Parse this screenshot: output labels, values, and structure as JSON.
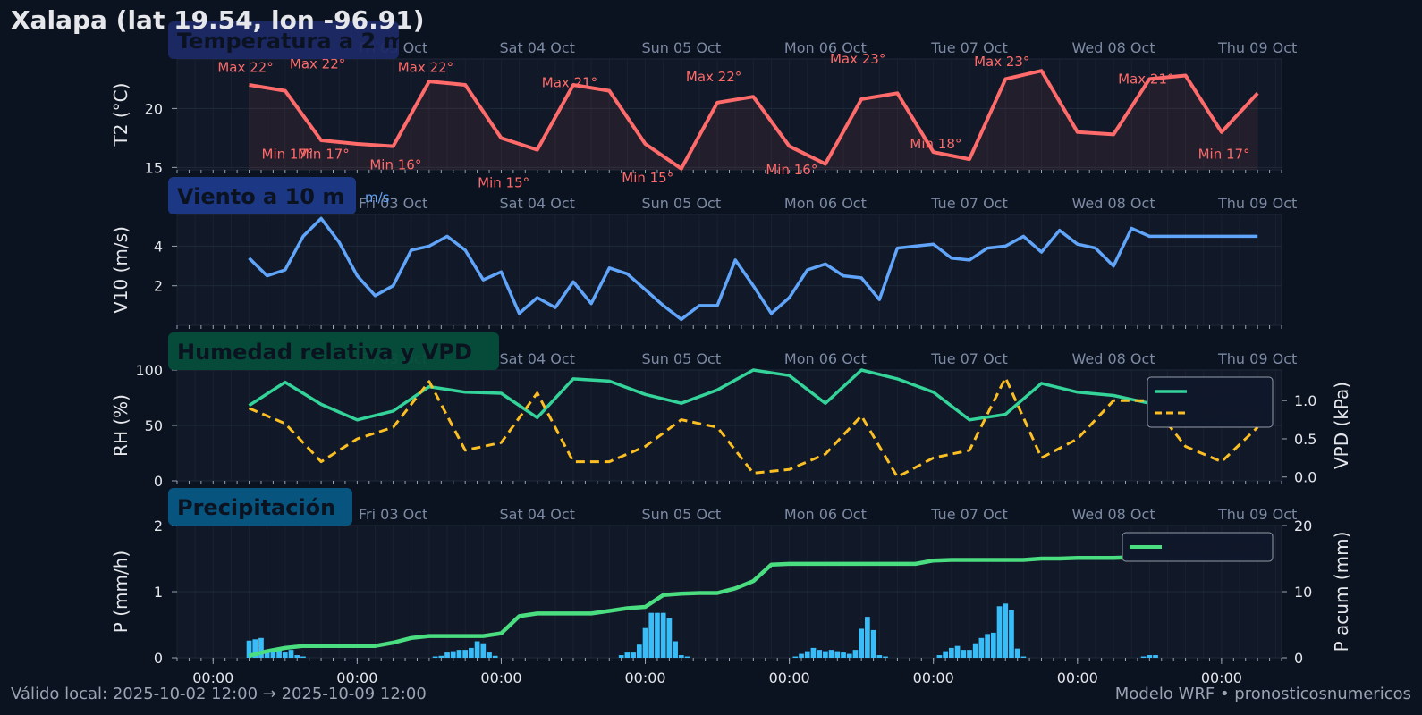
{
  "title": "Xalapa (lat 19.54, lon -96.91)",
  "footer": {
    "valid": "Válido local: 2025-10-02 12:00 → 2025-10-09 12:00",
    "credit": "Modelo WRF • pronosticosnumericos"
  },
  "colors": {
    "background": "#0b1220",
    "panel": "#111827",
    "temp": "#ff6b6b",
    "wind": "#60a5fa",
    "rh": "#34d399",
    "vpd": "#fbbf24",
    "precip_bar": "#38bdf8",
    "precip_acc": "#4ade80",
    "day_label": "#7c8aa3"
  },
  "day_labels": [
    "Fri 03 Oct",
    "Sat 04 Oct",
    "Sun 05 Oct",
    "Mon 06 Oct",
    "Tue 07 Oct",
    "Wed 08 Oct",
    "Thu 09 Oct"
  ],
  "bottom_ticks": [
    "00:00",
    "00:00",
    "00:00",
    "00:00",
    "00:00",
    "00:00",
    "00:00",
    "00:00"
  ],
  "chart_data": [
    {
      "type": "line",
      "panel_title": "Temperatura a 2 m",
      "ylabel": "T2 (°C)",
      "yticks": [
        15,
        20
      ],
      "ylim": [
        14.8,
        24.2
      ],
      "x_hours": [
        0,
        6,
        12,
        18,
        24,
        30,
        36,
        42,
        48,
        54,
        60,
        66,
        72,
        78,
        84,
        90,
        96,
        102,
        108,
        114,
        120,
        126,
        132,
        138,
        144,
        150,
        156,
        162,
        168
      ],
      "series": [
        {
          "name": "T2",
          "values": [
            22,
            21.5,
            17.3,
            17,
            16.8,
            22.3,
            22,
            17.5,
            16.5,
            22,
            21.5,
            17,
            14.9,
            20.5,
            21,
            16.8,
            15.3,
            20.8,
            21.3,
            16.3,
            15.7,
            22.5,
            23.2,
            18,
            17.8,
            22.5,
            22.8,
            18,
            21.3
          ]
        }
      ],
      "annotations": [
        {
          "x": 0,
          "y": 17.1,
          "label": "Min 17°"
        },
        {
          "x": 6,
          "y": 17.1,
          "label": "Min 17°"
        },
        {
          "x": 18,
          "y": 16.2,
          "label": "Min 16°"
        },
        {
          "x": 36,
          "y": 14.7,
          "label": "Min 15°"
        },
        {
          "x": 60,
          "y": 15.1,
          "label": "Min 15°"
        },
        {
          "x": 84,
          "y": 15.8,
          "label": "Min 16°"
        },
        {
          "x": 108,
          "y": 18.0,
          "label": "Min 18°"
        },
        {
          "x": 156,
          "y": 17.1,
          "label": "Min 17°"
        },
        {
          "x": 0,
          "y": 22.5,
          "label": "Max 22°"
        },
        {
          "x": 12,
          "y": 22.8,
          "label": "Max 22°"
        },
        {
          "x": 30,
          "y": 22.5,
          "label": "Max 22°"
        },
        {
          "x": 54,
          "y": 21.2,
          "label": "Max 21°"
        },
        {
          "x": 78,
          "y": 21.7,
          "label": "Max 22°"
        },
        {
          "x": 102,
          "y": 23.2,
          "label": "Max 23°"
        },
        {
          "x": 126,
          "y": 23.0,
          "label": "Max 23°"
        },
        {
          "x": 150,
          "y": 21.5,
          "label": "Max 21°"
        }
      ]
    },
    {
      "type": "line",
      "panel_title": "Viento a 10 m",
      "unit_label": "m/s",
      "ylabel": "V10 (m/s)",
      "yticks": [
        2,
        4
      ],
      "ylim": [
        0,
        5.6
      ],
      "x_hours": [
        0,
        3,
        6,
        9,
        12,
        15,
        18,
        21,
        24,
        27,
        30,
        33,
        36,
        39,
        42,
        45,
        48,
        51,
        54,
        57,
        60,
        63,
        66,
        69,
        72,
        75,
        78,
        81,
        84,
        87,
        90,
        93,
        96,
        99,
        102,
        105,
        108,
        111,
        114,
        117,
        120,
        123,
        126,
        129,
        132,
        135,
        138,
        141,
        144,
        147,
        150,
        153,
        156,
        159,
        162,
        165,
        168
      ],
      "series": [
        {
          "name": "V10",
          "values": [
            3.4,
            2.5,
            2.8,
            4.5,
            5.4,
            4.2,
            2.5,
            1.5,
            2.0,
            3.8,
            4.0,
            4.5,
            3.8,
            2.3,
            2.7,
            0.6,
            1.4,
            0.9,
            2.2,
            1.1,
            2.9,
            2.6,
            1.8,
            1.0,
            0.3,
            1.0,
            1.0,
            3.3,
            2.0,
            0.6,
            1.4,
            2.8,
            3.1,
            2.5,
            2.4,
            1.3,
            3.9,
            4.0,
            4.1,
            3.4,
            3.3,
            3.9,
            4.0,
            4.5,
            3.7,
            4.8,
            4.1,
            3.9,
            3.0,
            4.9,
            4.5,
            4.5,
            4.5,
            4.5,
            4.5,
            4.5,
            4.5
          ]
        }
      ]
    },
    {
      "type": "line",
      "panel_title": "Humedad relativa y VPD",
      "ylabel": "RH (%)",
      "y2label": "VPD (kPa)",
      "yticks": [
        0,
        50,
        100
      ],
      "ylim": [
        0,
        100
      ],
      "y2ticks": [
        0.0,
        0.5,
        1.0
      ],
      "y2lim": [
        -0.05,
        1.4
      ],
      "legend_position": "upper right",
      "x_hours": [
        0,
        6,
        12,
        18,
        24,
        30,
        36,
        42,
        48,
        54,
        60,
        66,
        72,
        78,
        84,
        90,
        96,
        102,
        108,
        114,
        120,
        126,
        132,
        138,
        144,
        150,
        156,
        162,
        168
      ],
      "series": [
        {
          "name": "RH (%)",
          "axis": "left",
          "values": [
            68,
            89,
            69,
            55,
            63,
            85,
            80,
            79,
            57,
            92,
            90,
            78,
            70,
            82,
            100,
            95,
            70,
            100,
            92,
            80,
            55,
            60,
            88,
            80,
            77,
            70,
            83,
            90,
            76
          ]
        },
        {
          "name": "VPD (kPa)",
          "axis": "right",
          "values": [
            0.9,
            0.7,
            0.2,
            0.5,
            0.65,
            1.25,
            0.35,
            0.45,
            1.1,
            0.2,
            0.2,
            0.4,
            0.75,
            0.65,
            0.05,
            0.1,
            0.3,
            0.8,
            0.0,
            0.25,
            0.35,
            1.3,
            0.25,
            0.5,
            1.0,
            1.0,
            0.4,
            0.2,
            0.65
          ]
        }
      ]
    },
    {
      "type": "bar",
      "panel_title": "Precipitación",
      "ylabel": "P (mm/h)",
      "y2label": "P acum (mm)",
      "yticks": [
        0,
        1,
        2
      ],
      "ylim": [
        0,
        2
      ],
      "y2ticks": [
        0,
        10,
        20
      ],
      "y2lim": [
        0,
        20
      ],
      "legend_position": "upper right",
      "x_hours": [
        0,
        1,
        2,
        3,
        4,
        5,
        6,
        7,
        8,
        9,
        10,
        11,
        12,
        13,
        14,
        15,
        16,
        17,
        18,
        19,
        20,
        21,
        22,
        23,
        24,
        25,
        26,
        27,
        28,
        29,
        30,
        31,
        32,
        33,
        34,
        35,
        36,
        37,
        38,
        39,
        40,
        41,
        42,
        43,
        44,
        45,
        46,
        47,
        48,
        49,
        50,
        51,
        52,
        53,
        54,
        55,
        56,
        57,
        58,
        59,
        60,
        61,
        62,
        63,
        64,
        65,
        66,
        67,
        68,
        69,
        70,
        71,
        72,
        73,
        74,
        75,
        76,
        77,
        78,
        79,
        80,
        81,
        82,
        83,
        84,
        85,
        86,
        87,
        88,
        89,
        90,
        91,
        92,
        93,
        94,
        95,
        96,
        97,
        98,
        99,
        100,
        101,
        102,
        103,
        104,
        105,
        106,
        107,
        108,
        109,
        110,
        111,
        112,
        113,
        114,
        115,
        116,
        117,
        118,
        119,
        120,
        121,
        122,
        123,
        124,
        125,
        126,
        127,
        128,
        129,
        130,
        131,
        132,
        133,
        134,
        135,
        136,
        137,
        138,
        139,
        140,
        141,
        142,
        143,
        144,
        145,
        146,
        147,
        148,
        149,
        150,
        151,
        152,
        153,
        154,
        155,
        156,
        157,
        158,
        159,
        160,
        161,
        162,
        163,
        164,
        165,
        166,
        167,
        168
      ],
      "series": [
        {
          "name": "P (mm/h)",
          "axis": "left",
          "values": [
            0.26,
            0.28,
            0.3,
            0.12,
            0.1,
            0.12,
            0.08,
            0.12,
            0.04,
            0.02,
            0,
            0,
            0,
            0,
            0,
            0,
            0,
            0,
            0,
            0,
            0,
            0,
            0,
            0,
            0,
            0,
            0,
            0,
            0,
            0,
            0,
            0.02,
            0.03,
            0.08,
            0.1,
            0.12,
            0.12,
            0.15,
            0.25,
            0.22,
            0.08,
            0.03,
            0,
            0,
            0,
            0,
            0,
            0,
            0,
            0,
            0,
            0,
            0,
            0,
            0,
            0,
            0,
            0,
            0,
            0,
            0,
            0,
            0.04,
            0.08,
            0.08,
            0.2,
            0.45,
            0.68,
            0.68,
            0.68,
            0.6,
            0.25,
            0.04,
            0.02,
            0,
            0,
            0,
            0,
            0,
            0,
            0,
            0,
            0,
            0,
            0,
            0,
            0,
            0,
            0,
            0,
            0,
            0.02,
            0.06,
            0.1,
            0.15,
            0.12,
            0.1,
            0.12,
            0.1,
            0.08,
            0.06,
            0.12,
            0.44,
            0.62,
            0.42,
            0.04,
            0.02,
            0,
            0,
            0,
            0,
            0,
            0,
            0,
            0,
            0.04,
            0.1,
            0.15,
            0.18,
            0.12,
            0.12,
            0.22,
            0.3,
            0.36,
            0.38,
            0.78,
            0.82,
            0.72,
            0.14,
            0.02,
            0,
            0,
            0,
            0,
            0,
            0,
            0,
            0,
            0,
            0,
            0,
            0,
            0,
            0,
            0,
            0,
            0,
            0,
            0,
            0.02,
            0.04,
            0.04,
            0,
            0,
            0,
            0,
            0,
            0,
            0,
            0,
            0,
            0,
            0,
            0,
            0,
            0,
            0,
            0,
            0
          ]
        },
        {
          "name": "P acum (mm)",
          "axis": "right",
          "x_hours": [
            0,
            3,
            6,
            9,
            12,
            15,
            18,
            21,
            24,
            27,
            30,
            33,
            36,
            39,
            42,
            45,
            48,
            51,
            54,
            57,
            60,
            63,
            66,
            69,
            72,
            75,
            78,
            81,
            84,
            87,
            90,
            93,
            96,
            99,
            102,
            105,
            108,
            111,
            114,
            117,
            120,
            123,
            126,
            129,
            132,
            135,
            138,
            141,
            144,
            147,
            150,
            153,
            156,
            159,
            162,
            165,
            168
          ],
          "values": [
            0.3,
            1.0,
            1.5,
            1.8,
            1.8,
            1.8,
            1.8,
            1.8,
            2.3,
            3.0,
            3.3,
            3.3,
            3.3,
            3.3,
            3.7,
            6.3,
            6.7,
            6.7,
            6.7,
            6.7,
            7.1,
            7.5,
            7.7,
            9.5,
            9.7,
            9.8,
            9.8,
            10.5,
            11.6,
            14.1,
            14.2,
            14.2,
            14.2,
            14.2,
            14.2,
            14.2,
            14.2,
            14.2,
            14.7,
            14.8,
            14.8,
            14.8,
            14.8,
            14.8,
            15.0,
            15.0,
            15.1,
            15.1,
            15.1,
            15.2,
            15.4,
            15.4,
            17.8,
            17.8,
            17.8,
            17.8,
            17.8
          ]
        }
      ]
    }
  ]
}
